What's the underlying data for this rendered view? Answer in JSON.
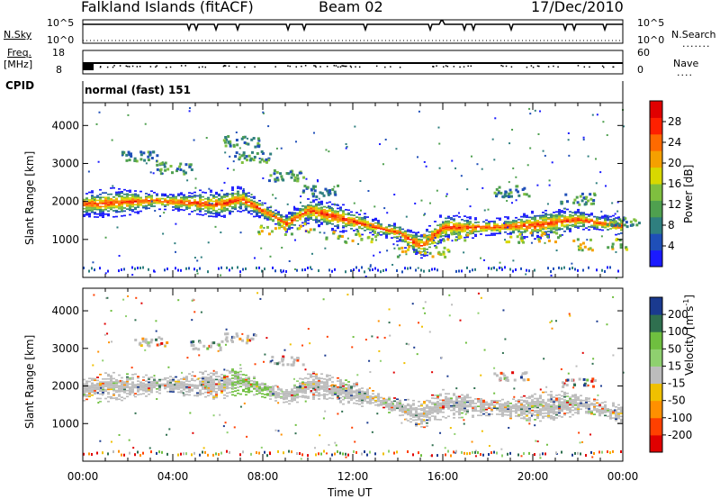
{
  "header": {
    "station": "Falkland Islands (fitACF)",
    "beam": "Beam 02",
    "date": "17/Dec/2010"
  },
  "top_panels": {
    "nsky_label": "N.Sky",
    "nsky_ticks": [
      "10^5",
      "10^0"
    ],
    "nsearch_label": "N.Search",
    "nsearch_ticks": [
      "10^5",
      "10^0"
    ],
    "freq_label_line1": "Freq.",
    "freq_label_line2": "[MHz]",
    "freq_ticks": [
      "18",
      "8"
    ],
    "nave_label": "Nave",
    "nave_ticks": [
      "60",
      "0"
    ],
    "cpid_label": "CPID",
    "cpid_text": "normal (fast) 151"
  },
  "chart_data": [
    {
      "type": "heatmap",
      "panel": "power",
      "ylabel": "Slant Range [km]",
      "xlabel": "Time UT",
      "yticks": [
        "1000",
        "2000",
        "3000",
        "4000"
      ],
      "ylim": [
        0,
        4600
      ],
      "xticks": [
        "00:00",
        "04:00",
        "08:00",
        "12:00",
        "16:00",
        "20:00",
        "00:00"
      ],
      "xlim_hours": [
        0,
        24
      ],
      "colorbar": {
        "label": "Power [dB]",
        "ticks": [
          "4",
          "8",
          "12",
          "16",
          "20",
          "24",
          "28"
        ],
        "range": [
          0,
          32
        ],
        "colors": [
          "#1a1aff",
          "#1f4fb8",
          "#2f7f7f",
          "#4fa04f",
          "#7fbf3f",
          "#d8d800",
          "#f5a000",
          "#ff6a00",
          "#ff2000",
          "#e00000"
        ]
      },
      "echo_band_center_km": [
        [
          0,
          1900
        ],
        [
          3,
          2000
        ],
        [
          6,
          1900
        ],
        [
          7,
          2050
        ],
        [
          9,
          1400
        ],
        [
          10,
          1750
        ],
        [
          12,
          1450
        ],
        [
          14,
          1150
        ],
        [
          15,
          800
        ],
        [
          16,
          1300
        ],
        [
          18,
          1300
        ],
        [
          20,
          1350
        ],
        [
          22,
          1500
        ],
        [
          24,
          1300
        ]
      ],
      "lower_band_center_km": [
        [
          9,
          1300
        ],
        [
          12,
          1100
        ],
        [
          15,
          700
        ],
        [
          16,
          1100
        ],
        [
          20,
          1100
        ],
        [
          23,
          900
        ]
      ],
      "upper_blobs_km": [
        [
          2.5,
          3200
        ],
        [
          4,
          2900
        ],
        [
          7,
          3600
        ],
        [
          7.5,
          3200
        ],
        [
          9,
          2700
        ],
        [
          10.5,
          2300
        ],
        [
          19,
          2300
        ],
        [
          22,
          2100
        ],
        [
          24,
          1500
        ]
      ]
    },
    {
      "type": "heatmap",
      "panel": "velocity",
      "ylabel": "Slant Range [km]",
      "xlabel": "Time UT",
      "yticks": [
        "1000",
        "2000",
        "3000",
        "4000"
      ],
      "ylim": [
        0,
        4600
      ],
      "xticks": [
        "00:00",
        "04:00",
        "08:00",
        "12:00",
        "16:00",
        "20:00",
        "00:00"
      ],
      "xlim_hours": [
        0,
        24
      ],
      "colorbar": {
        "label": "Velocity [m s",
        "label_sup": "-1",
        "label_end": "]",
        "ticks": [
          "200",
          "100",
          "50",
          "15",
          "-15",
          "-50",
          "-100",
          "-200"
        ],
        "colors": [
          "#1a3a8f",
          "#2f6f4f",
          "#6fbf3f",
          "#8fd06f",
          "#bcbcbc",
          "#f0c000",
          "#ff9000",
          "#ff4000",
          "#e00000"
        ]
      },
      "ground_scatter_band_km": [
        [
          0,
          1900
        ],
        [
          3,
          2000
        ],
        [
          6,
          2000
        ],
        [
          7,
          2100
        ],
        [
          9,
          1700
        ],
        [
          10,
          2000
        ],
        [
          12,
          1800
        ],
        [
          14,
          1400
        ],
        [
          15,
          1200
        ],
        [
          16,
          1500
        ],
        [
          18,
          1400
        ],
        [
          20,
          1400
        ],
        [
          22,
          1500
        ],
        [
          24,
          1200
        ]
      ]
    }
  ],
  "xlabel_text": "Time UT"
}
